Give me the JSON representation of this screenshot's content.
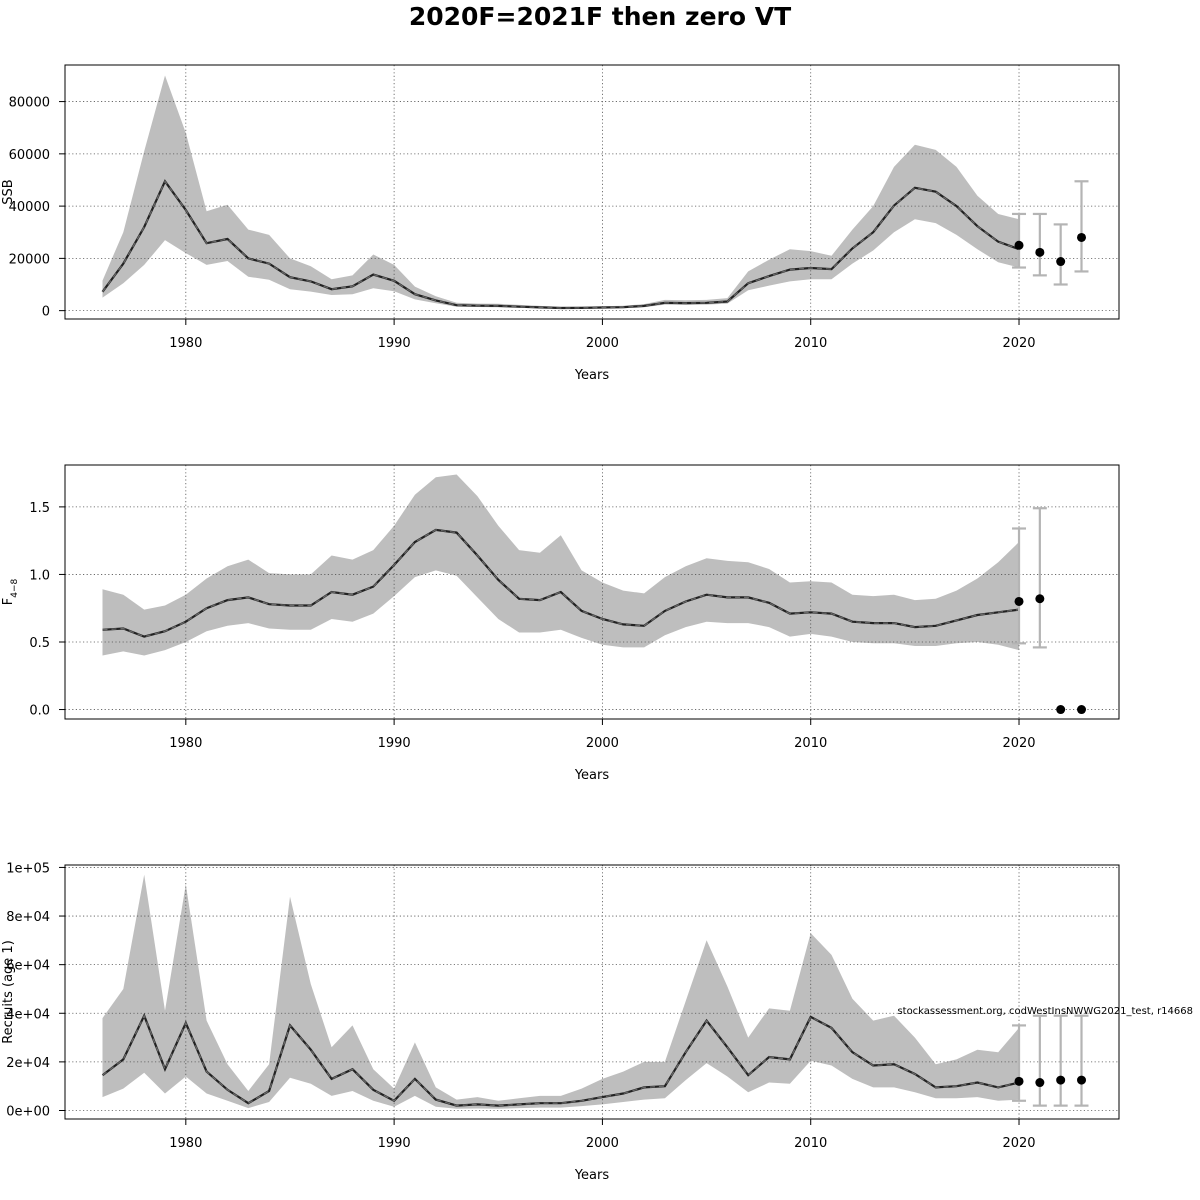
{
  "figure": {
    "title": "2020F=2021F then zero VT",
    "watermark": "stockassessment.org, codWestInsNWWG2021_test, r14668"
  },
  "chart_data": [
    {
      "type": "line",
      "xlabel": "Years",
      "ylabel": "SSB",
      "ylabel_sub": "",
      "xlim": [
        1974.2,
        2024.8
      ],
      "ylim": [
        -3200,
        94000
      ],
      "xticks": [
        1980,
        1990,
        2000,
        2010,
        2020
      ],
      "xtick_labels": [
        "1980",
        "1990",
        "2000",
        "2010",
        "2020"
      ],
      "yticks": [
        0,
        20000,
        40000,
        60000,
        80000
      ],
      "ytick_labels": [
        "0",
        "20000",
        "40000",
        "60000",
        "80000"
      ],
      "grid": true,
      "band_color": "#bebebe",
      "line_color": "#222222",
      "series": {
        "years": [
          1976,
          1977,
          1978,
          1979,
          1980,
          1981,
          1982,
          1983,
          1984,
          1985,
          1986,
          1987,
          1988,
          1989,
          1990,
          1991,
          1992,
          1993,
          1994,
          1995,
          1996,
          1997,
          1998,
          1999,
          2000,
          2001,
          2002,
          2003,
          2004,
          2005,
          2006,
          2007,
          2008,
          2009,
          2010,
          2011,
          2012,
          2013,
          2014,
          2015,
          2016,
          2017,
          2018,
          2019,
          2020
        ],
        "estimate": [
          7200,
          18000,
          32000,
          49500,
          38500,
          25800,
          27400,
          20000,
          18000,
          12800,
          11200,
          8200,
          9300,
          13800,
          11400,
          6300,
          3900,
          2100,
          1900,
          1800,
          1500,
          1250,
          1000,
          1050,
          1200,
          1300,
          1800,
          3000,
          2900,
          3000,
          3500,
          10500,
          13200,
          15700,
          16300,
          15900,
          23800,
          30000,
          40200,
          47000,
          45500,
          40000,
          32300,
          26400,
          23500
        ],
        "lower": [
          5000,
          10500,
          17500,
          27000,
          22000,
          17500,
          19000,
          13000,
          11800,
          8200,
          7300,
          6000,
          6300,
          8600,
          7400,
          4300,
          2800,
          1500,
          1400,
          1300,
          1100,
          900,
          700,
          740,
          850,
          930,
          1300,
          2300,
          2200,
          2300,
          2700,
          7800,
          9600,
          11200,
          12000,
          12000,
          18000,
          23000,
          30000,
          35000,
          33500,
          29000,
          23500,
          18500,
          16500
        ],
        "upper": [
          11500,
          30000,
          61000,
          90000,
          68000,
          38000,
          40500,
          31000,
          29000,
          20000,
          17000,
          12000,
          13500,
          21500,
          17500,
          9200,
          5500,
          3000,
          2700,
          2600,
          2200,
          1800,
          1450,
          1500,
          1700,
          1850,
          2500,
          4100,
          4000,
          4100,
          4800,
          15000,
          19500,
          23500,
          22800,
          21000,
          31000,
          40000,
          55000,
          63500,
          61500,
          55000,
          44000,
          37000,
          35000
        ]
      },
      "forecast": {
        "years": [
          2020,
          2021,
          2022,
          2023
        ],
        "median": [
          25000,
          22300,
          18800,
          28000
        ],
        "low": [
          16500,
          13500,
          10000,
          15000
        ],
        "high": [
          37000,
          37000,
          33000,
          49500
        ]
      }
    },
    {
      "type": "line",
      "xlabel": "Years",
      "ylabel": "F",
      "ylabel_sub": "4−8",
      "xlim": [
        1974.2,
        2024.8
      ],
      "ylim": [
        -0.07,
        1.81
      ],
      "xticks": [
        1980,
        1990,
        2000,
        2010,
        2020
      ],
      "xtick_labels": [
        "1980",
        "1990",
        "2000",
        "2010",
        "2020"
      ],
      "yticks": [
        0,
        0.5,
        1.0,
        1.5
      ],
      "ytick_labels": [
        "0.0",
        "0.5",
        "1.0",
        "1.5"
      ],
      "grid": true,
      "band_color": "#bebebe",
      "line_color": "#222222",
      "series": {
        "years": [
          1976,
          1977,
          1978,
          1979,
          1980,
          1981,
          1982,
          1983,
          1984,
          1985,
          1986,
          1987,
          1988,
          1989,
          1990,
          1991,
          1992,
          1993,
          1994,
          1995,
          1996,
          1997,
          1998,
          1999,
          2000,
          2001,
          2002,
          2003,
          2004,
          2005,
          2006,
          2007,
          2008,
          2009,
          2010,
          2011,
          2012,
          2013,
          2014,
          2015,
          2016,
          2017,
          2018,
          2019,
          2020
        ],
        "estimate": [
          0.59,
          0.6,
          0.54,
          0.58,
          0.65,
          0.75,
          0.81,
          0.83,
          0.78,
          0.77,
          0.77,
          0.87,
          0.85,
          0.91,
          1.07,
          1.24,
          1.33,
          1.31,
          1.14,
          0.96,
          0.82,
          0.81,
          0.87,
          0.73,
          0.67,
          0.63,
          0.62,
          0.73,
          0.8,
          0.85,
          0.83,
          0.83,
          0.79,
          0.71,
          0.72,
          0.71,
          0.65,
          0.64,
          0.64,
          0.61,
          0.62,
          0.66,
          0.7,
          0.72,
          0.74
        ],
        "lower": [
          0.4,
          0.43,
          0.4,
          0.44,
          0.5,
          0.58,
          0.62,
          0.64,
          0.6,
          0.59,
          0.59,
          0.67,
          0.65,
          0.71,
          0.84,
          0.98,
          1.03,
          0.99,
          0.83,
          0.67,
          0.57,
          0.57,
          0.59,
          0.53,
          0.48,
          0.46,
          0.46,
          0.55,
          0.61,
          0.65,
          0.64,
          0.64,
          0.61,
          0.54,
          0.56,
          0.54,
          0.5,
          0.49,
          0.49,
          0.47,
          0.47,
          0.49,
          0.5,
          0.48,
          0.44
        ],
        "upper": [
          0.89,
          0.85,
          0.74,
          0.77,
          0.85,
          0.97,
          1.06,
          1.11,
          1.01,
          1.0,
          1.0,
          1.14,
          1.11,
          1.18,
          1.36,
          1.59,
          1.72,
          1.74,
          1.58,
          1.36,
          1.18,
          1.16,
          1.29,
          1.03,
          0.94,
          0.88,
          0.86,
          0.98,
          1.06,
          1.12,
          1.1,
          1.09,
          1.04,
          0.94,
          0.95,
          0.94,
          0.85,
          0.84,
          0.85,
          0.81,
          0.82,
          0.88,
          0.97,
          1.09,
          1.24
        ]
      },
      "forecast": {
        "years": [
          2020,
          2021,
          2022,
          2023
        ],
        "median": [
          0.8,
          0.82,
          0.0,
          0.0
        ],
        "low": [
          0.49,
          0.46,
          null,
          null
        ],
        "high": [
          1.34,
          1.49,
          null,
          null
        ]
      }
    },
    {
      "type": "line",
      "xlabel": "Years",
      "ylabel": "Recruits (age 1)",
      "ylabel_sub": "",
      "xlim": [
        1974.2,
        2024.8
      ],
      "ylim": [
        -3500,
        101000
      ],
      "xticks": [
        1980,
        1990,
        2000,
        2010,
        2020
      ],
      "xtick_labels": [
        "1980",
        "1990",
        "2000",
        "2010",
        "2020"
      ],
      "yticks": [
        0,
        20000,
        40000,
        60000,
        80000,
        100000
      ],
      "ytick_labels": [
        "0e+00",
        "2e+04",
        "4e+04",
        "6e+04",
        "8e+04",
        "1e+05"
      ],
      "grid": true,
      "band_color": "#bebebe",
      "line_color": "#222222",
      "series": {
        "years": [
          1976,
          1977,
          1978,
          1979,
          1980,
          1981,
          1982,
          1983,
          1984,
          1985,
          1986,
          1987,
          1988,
          1989,
          1990,
          1991,
          1992,
          1993,
          1994,
          1995,
          1996,
          1997,
          1998,
          1999,
          2000,
          2001,
          2002,
          2003,
          2004,
          2005,
          2006,
          2007,
          2008,
          2009,
          2010,
          2011,
          2012,
          2013,
          2014,
          2015,
          2016,
          2017,
          2018,
          2019,
          2020
        ],
        "estimate": [
          14500,
          21000,
          39000,
          17000,
          36000,
          16000,
          8500,
          3000,
          8000,
          35000,
          25000,
          13000,
          17000,
          8500,
          4000,
          13000,
          4500,
          2000,
          2500,
          2000,
          2500,
          3000,
          3000,
          4000,
          5500,
          7000,
          9500,
          10000,
          24000,
          37000,
          26000,
          14500,
          22000,
          21000,
          38500,
          34000,
          24000,
          18500,
          19000,
          15000,
          9500,
          10000,
          11500,
          9500,
          11500
        ],
        "lower": [
          5500,
          9000,
          15500,
          7000,
          14000,
          7000,
          4000,
          1000,
          3500,
          13500,
          11000,
          6000,
          8000,
          4000,
          1500,
          6000,
          1500,
          700,
          800,
          700,
          1000,
          1200,
          1200,
          1800,
          2500,
          3500,
          4500,
          5000,
          12500,
          19500,
          14000,
          7500,
          11500,
          11000,
          20500,
          18500,
          13000,
          9500,
          9500,
          7500,
          5000,
          5000,
          5500,
          4000,
          4500
        ],
        "upper": [
          38000,
          50000,
          97000,
          41000,
          93000,
          37000,
          19000,
          8000,
          19000,
          88000,
          52000,
          26000,
          35000,
          17000,
          9000,
          28000,
          9500,
          4500,
          5500,
          4000,
          5000,
          6000,
          6000,
          9000,
          13000,
          16000,
          20000,
          20000,
          45000,
          70000,
          51000,
          30000,
          42000,
          41000,
          73000,
          64000,
          46000,
          37000,
          39000,
          30000,
          19000,
          21000,
          25000,
          24000,
          34000
        ]
      },
      "forecast": {
        "years": [
          2020,
          2021,
          2022,
          2023
        ],
        "median": [
          12000,
          11500,
          12500,
          12500
        ],
        "low": [
          4000,
          2000,
          2000,
          2000
        ],
        "high": [
          35000,
          39000,
          39000,
          39000
        ]
      }
    }
  ]
}
